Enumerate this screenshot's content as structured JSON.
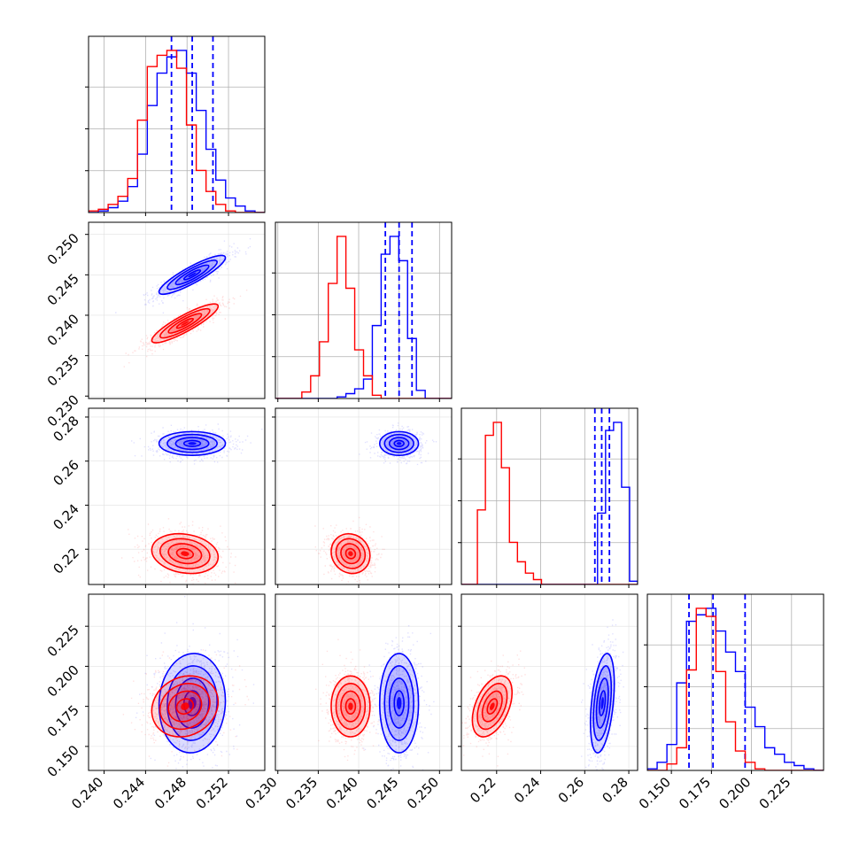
{
  "chart_data": {
    "type": "corner",
    "n_params": 4,
    "colors": {
      "sample_a": "#0000ff",
      "sample_b": "#ff0000"
    },
    "grid": true,
    "params": [
      {
        "range": [
          0.2385,
          0.2555
        ],
        "ticks": [
          0.24,
          0.244,
          0.248,
          0.252
        ],
        "tick_labels": [
          "0.240",
          "0.244",
          "0.248",
          "0.252"
        ]
      },
      {
        "range": [
          0.2297,
          0.2515
        ],
        "ticks": [
          0.23,
          0.235,
          0.24,
          0.245,
          0.25
        ],
        "tick_labels": [
          "0.230",
          "0.235",
          "0.240",
          "0.245",
          "0.250"
        ]
      },
      {
        "range": [
          0.204,
          0.284
        ],
        "ticks": [
          0.22,
          0.24,
          0.26,
          0.28
        ],
        "tick_labels": [
          "0.22",
          "0.24",
          "0.26",
          "0.28"
        ]
      },
      {
        "range": [
          0.135,
          0.245
        ],
        "ticks": [
          0.15,
          0.175,
          0.2,
          0.225
        ],
        "tick_labels": [
          "0.150",
          "0.175",
          "0.200",
          "0.225"
        ]
      }
    ],
    "samples": [
      {
        "color": "#0000ff",
        "mean": [
          0.2485,
          0.245,
          0.268,
          0.177
        ],
        "std": [
          0.0016,
          0.0012,
          0.0027,
          0.0155
        ],
        "quantiles": [
          [
            0.2465,
            0.2485,
            0.2505
          ],
          [
            0.2433,
            0.245,
            0.2466
          ],
          [
            0.2646,
            0.2677,
            0.2712
          ],
          [
            0.161,
            0.176,
            0.196
          ]
        ],
        "hist": [
          [
            0,
            0.01,
            0.03,
            0.07,
            0.16,
            0.36,
            0.66,
            0.86,
            0.96,
            1.0,
            0.86,
            0.63,
            0.39,
            0.2,
            0.09,
            0.04,
            0.01,
            0
          ],
          [
            0,
            0,
            0,
            0,
            0,
            0,
            0,
            0.01,
            0.03,
            0.06,
            0.12,
            0.45,
            0.89,
            1.0,
            0.85,
            0.37,
            0.05,
            0,
            0,
            0
          ],
          [
            0,
            0,
            0,
            0,
            0,
            0,
            0,
            0,
            0,
            0,
            0,
            0,
            0,
            0,
            0,
            0,
            0,
            0.44,
            0.95,
            1.0,
            0.6,
            0.02
          ],
          [
            0.01,
            0.05,
            0.16,
            0.54,
            0.92,
            0.96,
            1.0,
            0.86,
            0.73,
            0.61,
            0.39,
            0.27,
            0.14,
            0.1,
            0.05,
            0.03,
            0.01,
            0
          ]
        ],
        "corr": [
          [
            1,
            0.88,
            0,
            0.05
          ],
          [
            0.88,
            1,
            0,
            0
          ],
          [
            0,
            0,
            1,
            0.4
          ],
          [
            0.05,
            0,
            0.4,
            1
          ]
        ]
      },
      {
        "color": "#ff0000",
        "mean": [
          0.2478,
          0.239,
          0.218,
          0.175
        ],
        "std": [
          0.0016,
          0.0012,
          0.0045,
          0.0095
        ],
        "quantiles": [],
        "hist": [
          [
            0.01,
            0.02,
            0.05,
            0.1,
            0.21,
            0.57,
            0.9,
            0.97,
            1.0,
            0.89,
            0.54,
            0.26,
            0.13,
            0.05,
            0.01,
            0,
            0,
            0
          ],
          [
            0,
            0,
            0,
            0.04,
            0.14,
            0.35,
            0.71,
            1.0,
            0.68,
            0.3,
            0.14,
            0.02,
            0,
            0,
            0,
            0,
            0,
            0,
            0,
            0
          ],
          [
            0,
            0,
            0.46,
            0.92,
            1.0,
            0.72,
            0.26,
            0.14,
            0.07,
            0.03,
            0,
            0,
            0,
            0,
            0,
            0,
            0,
            0,
            0,
            0,
            0,
            0
          ],
          [
            0,
            0,
            0.04,
            0.14,
            0.62,
            1.0,
            0.95,
            0.61,
            0.3,
            0.12,
            0.05,
            0.01,
            0,
            0,
            0,
            0,
            0,
            0
          ]
        ],
        "corr": [
          [
            1,
            0.88,
            -0.18,
            0.15
          ],
          [
            0.88,
            1,
            -0.1,
            0
          ],
          [
            -0.18,
            -0.1,
            1,
            0.45
          ],
          [
            0.15,
            0,
            0.45,
            1
          ]
        ]
      }
    ],
    "contour_levels_sigma": [
      0.5,
      1.0,
      1.5,
      2.0
    ]
  }
}
